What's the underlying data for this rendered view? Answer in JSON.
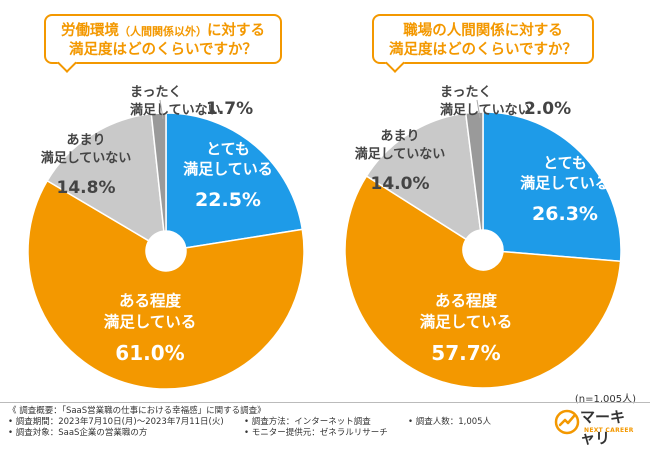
{
  "chart_data": [
    {
      "type": "pie",
      "title": "労働環境（人間関係以外）に対する満足度はどのくらいですか？",
      "title_main": "労働環境",
      "title_sub": "（人間関係以外）",
      "title_rest": "に対する",
      "title_line2": "満足度はどのくらいですか？",
      "slices": [
        {
          "label": "とても満足している",
          "label_lines": [
            "とても",
            "満足している"
          ],
          "value": 22.5,
          "value_text": "22.5%",
          "color": "#1e9be8"
        },
        {
          "label": "ある程度満足している",
          "label_lines": [
            "ある程度",
            "満足している"
          ],
          "value": 61.0,
          "value_text": "61.0%",
          "color": "#f39800"
        },
        {
          "label": "あまり満足していない",
          "label_lines": [
            "あまり",
            "満足していない"
          ],
          "value": 14.8,
          "value_text": "14.8%",
          "color": "#c9c9c9"
        },
        {
          "label": "まったく満足していない",
          "label_lines": [
            "まったく",
            "満足していない"
          ],
          "value": 1.7,
          "value_text": "1.7%",
          "color": "#9a9a9a"
        }
      ]
    },
    {
      "type": "pie",
      "title": "職場の人間関係に対する満足度はどのくらいですか？",
      "title_line1": "職場の人間関係に対する",
      "title_line2": "満足度はどのくらいですか？",
      "slices": [
        {
          "label": "とても満足している",
          "label_lines": [
            "とても",
            "満足している"
          ],
          "value": 26.3,
          "value_text": "26.3%",
          "color": "#1e9be8"
        },
        {
          "label": "ある程度満足している",
          "label_lines": [
            "ある程度",
            "満足している"
          ],
          "value": 57.7,
          "value_text": "57.7%",
          "color": "#f39800"
        },
        {
          "label": "あまり満足していない",
          "label_lines": [
            "あまり",
            "満足していない"
          ],
          "value": 14.0,
          "value_text": "14.0%",
          "color": "#c9c9c9"
        },
        {
          "label": "まったく満足していない",
          "label_lines": [
            "まったく",
            "満足していない"
          ],
          "value": 2.0,
          "value_text": "2.0%",
          "color": "#9a9a9a"
        }
      ]
    }
  ],
  "sample_note": "(n=1,005人)",
  "footer": {
    "summary": "《 調査概要：「SaaS営業職の仕事における幸福感」に関する調査》",
    "period": "• 調査期間：2023年7月10日(月)〜2023年7月11日(火)",
    "method": "• 調査方法：インターネット調査",
    "count": "• 調査人数：1,005人",
    "target": "• 調査対象：SaaS企業の営業職の方",
    "provider": "• モニター提供元：ゼネラルリサーチ"
  },
  "logo": {
    "name": "マーキャリ",
    "sub": "NEXT CAREER",
    "accent": "#f39800"
  }
}
